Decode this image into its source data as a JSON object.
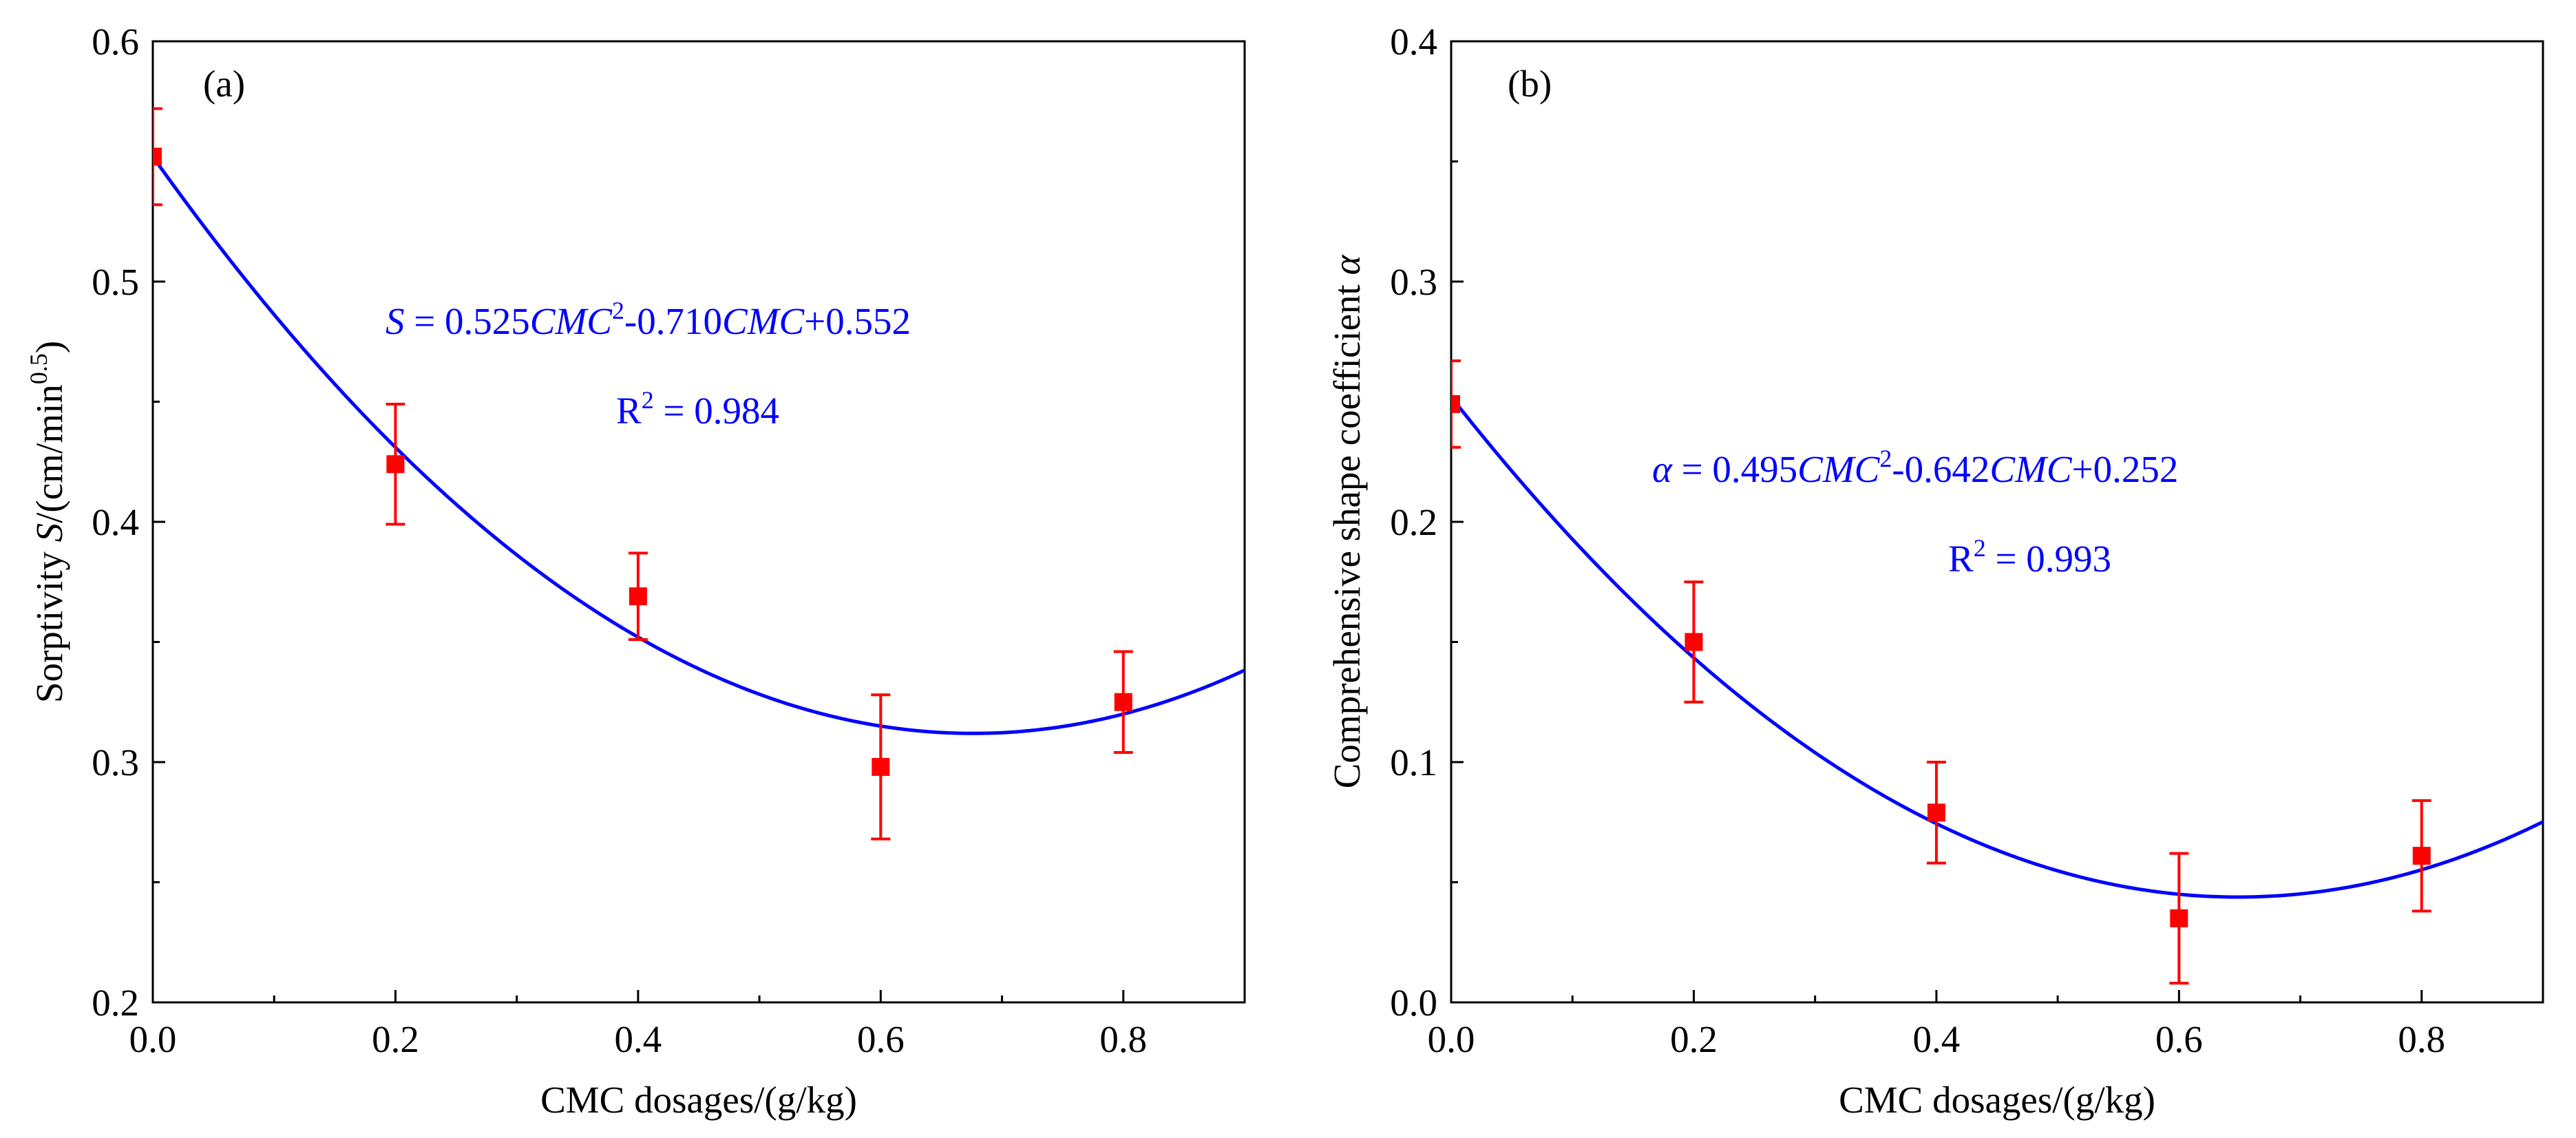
{
  "chart_data": [
    {
      "type": "scatter",
      "panel_label": "(a)",
      "x": [
        0.0,
        0.2,
        0.4,
        0.6,
        0.8
      ],
      "series": [
        {
          "name": "Sorptivity",
          "values": [
            0.552,
            0.424,
            0.369,
            0.298,
            0.325
          ],
          "error": [
            0.02,
            0.025,
            0.018,
            0.03,
            0.021
          ],
          "color": "#ff0000"
        }
      ],
      "fit": {
        "a": 0.525,
        "b": -0.71,
        "c": 0.552,
        "color": "#0000ff"
      },
      "xlim": [
        0,
        0.9
      ],
      "ylim": [
        0.2,
        0.6
      ],
      "xticks": [
        "0.0",
        "0.2",
        "0.4",
        "0.6",
        "0.8"
      ],
      "yticks": [
        "0.2",
        "0.3",
        "0.4",
        "0.5",
        "0.6"
      ],
      "xlabel": "CMC dosages/(g/kg)",
      "ylabel": {
        "pre": "Sorptivity ",
        "var": "S",
        "post": "/(cm/min",
        "sup": "0.5",
        "end": ")"
      },
      "equation": {
        "sym": "S",
        "lead": " = 0.525",
        "cmc1": "CMC",
        "sup": "2",
        "mid": "-0.710",
        "cmc2": "CMC",
        "tail": "+0.552"
      },
      "r2": {
        "r": "R",
        "sup": "2",
        "val": " = 0.984"
      }
    },
    {
      "type": "scatter",
      "panel_label": "(b)",
      "x": [
        0.0,
        0.2,
        0.4,
        0.6,
        0.8
      ],
      "series": [
        {
          "name": "Comprehensive shape coefficient",
          "values": [
            0.249,
            0.15,
            0.079,
            0.035,
            0.061
          ],
          "error": [
            0.018,
            0.025,
            0.021,
            0.027,
            0.023
          ],
          "color": "#ff0000"
        }
      ],
      "fit": {
        "a": 0.495,
        "b": -0.642,
        "c": 0.252,
        "color": "#0000ff"
      },
      "xlim": [
        0,
        0.9
      ],
      "ylim": [
        0.0,
        0.4
      ],
      "xticks": [
        "0.0",
        "0.2",
        "0.4",
        "0.6",
        "0.8"
      ],
      "yticks": [
        "0.0",
        "0.1",
        "0.2",
        "0.3",
        "0.4"
      ],
      "xlabel": "CMC dosages/(g/kg)",
      "ylabel": {
        "pre": "Comprehensive shape coefficient ",
        "var": "α"
      },
      "equation": {
        "sym": "α",
        "lead": " = 0.495",
        "cmc1": "CMC",
        "sup": "2",
        "mid": "-0.642",
        "cmc2": "CMC",
        "tail": "+0.252"
      },
      "r2": {
        "r": "R",
        "sup": "2",
        "val": " = 0.993"
      }
    }
  ]
}
